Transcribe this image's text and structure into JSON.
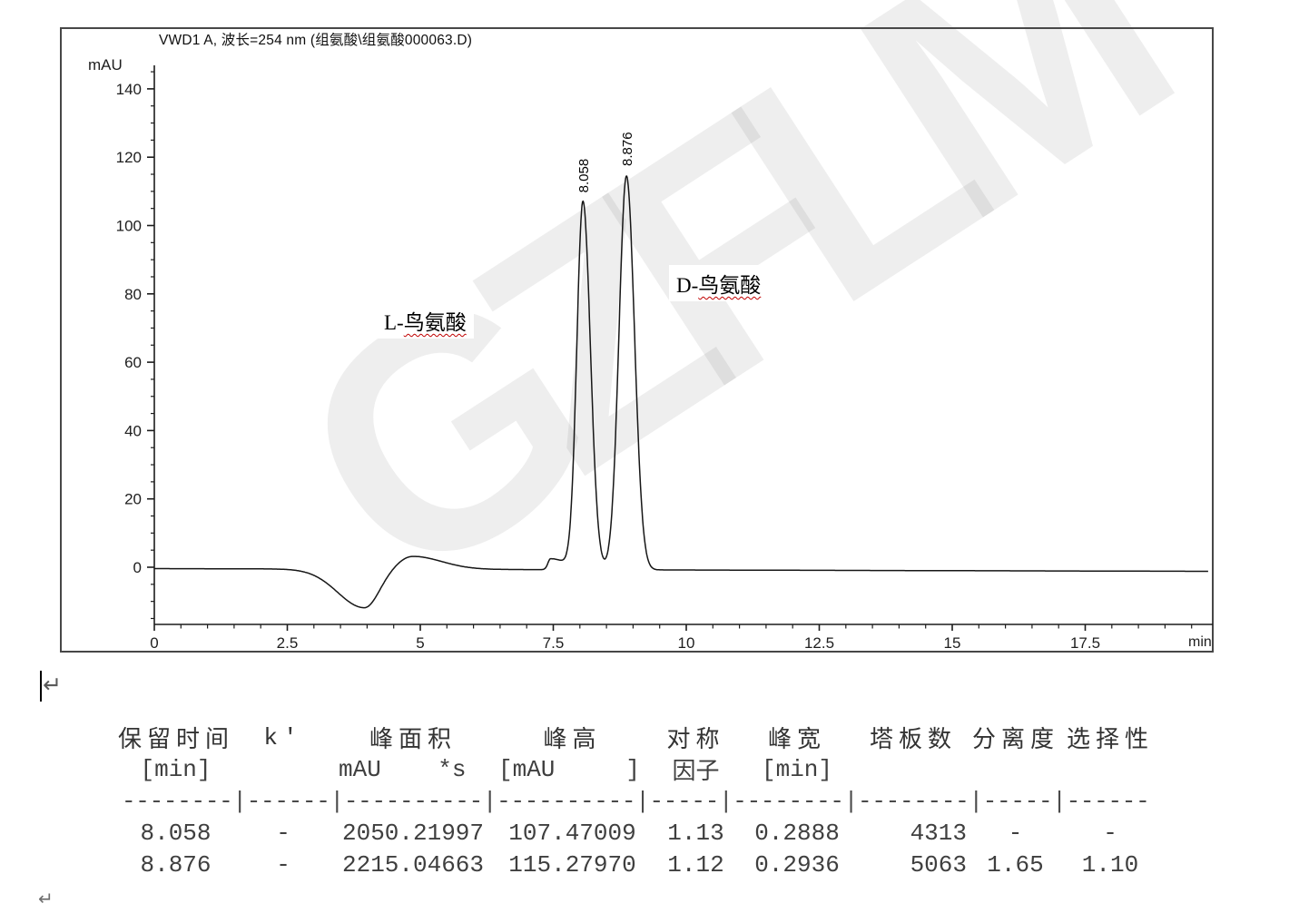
{
  "watermark": "GZFLM",
  "editor_marks": {
    "return_mark_top": "↵",
    "return_mark_bottom": "↵"
  },
  "chart": {
    "title": "VWD1 A, 波长=254 nm (组氨酸\\组氨酸000063.D)",
    "annotations": [
      {
        "prefix": "L-",
        "compound": "鸟氨酸",
        "underline_color": "#c00000"
      },
      {
        "prefix": "D-",
        "compound": "鸟氨酸",
        "underline_color": "#c00000"
      }
    ]
  },
  "chart_data": {
    "type": "line",
    "title": "VWD1 A, 波长=254 nm (组氨酸\\组氨酸000063.D)",
    "xlabel": "min",
    "ylabel": "mAU",
    "xlim": [
      0,
      19.8
    ],
    "ylim": [
      -16.7,
      148
    ],
    "x_ticks": [
      0,
      2.5,
      5,
      7.5,
      10,
      12.5,
      15,
      17.5
    ],
    "x_minor_tick_step": 0.5,
    "y_ticks": [
      0,
      20,
      40,
      60,
      80,
      100,
      120,
      140
    ],
    "y_minor_tick_step": 5,
    "grid": false,
    "legend": false,
    "peaks": [
      {
        "label": "8.058",
        "rt_min": 8.058,
        "height_mAU": 107.47009,
        "sigma_left": 0.115,
        "sigma_right": 0.14,
        "compound": "L-鸟氨酸"
      },
      {
        "label": "8.876",
        "rt_min": 8.876,
        "height_mAU": 115.2797,
        "sigma_left": 0.14,
        "sigma_right": 0.15,
        "compound": "D-鸟氨酸"
      }
    ],
    "baseline_drift": {
      "start_mAU": -0.4,
      "end_mAU": -1.2
    },
    "baseline_features": [
      {
        "type": "dip",
        "center_min": 3.95,
        "amplitude_mAU": -11.3,
        "sigma_left": 0.5,
        "sigma_right": 0.27
      },
      {
        "type": "bump",
        "center_min": 4.85,
        "amplitude_mAU": 3.8,
        "sigma_left": 0.27,
        "sigma_right": 0.55
      },
      {
        "type": "step",
        "center_min": 7.45,
        "amplitude_mAU": 3.2,
        "sigma_left": 0.05,
        "sigma_right": 0.3
      }
    ]
  },
  "table": {
    "header_row1": [
      "保留时间",
      "k'",
      "峰面积",
      "峰高",
      "对称",
      "峰宽",
      "塔板数",
      "分离度",
      "选择性"
    ],
    "header_row2": [
      "[min]",
      "",
      "mAU    *s",
      "[mAU     ]",
      "因子",
      "[min]",
      "",
      "",
      ""
    ],
    "separator": "--------|------|----------|----------|-----|--------|--------|-----|------",
    "rows": [
      [
        "8.058",
        "-",
        "2050.21997",
        "107.47009",
        "1.13",
        "0.2888",
        "4313",
        "-",
        "-"
      ],
      [
        "8.876",
        "-",
        "2215.04663",
        "115.27970",
        "1.12",
        "0.2936",
        "5063",
        "1.65",
        "1.10"
      ]
    ]
  }
}
